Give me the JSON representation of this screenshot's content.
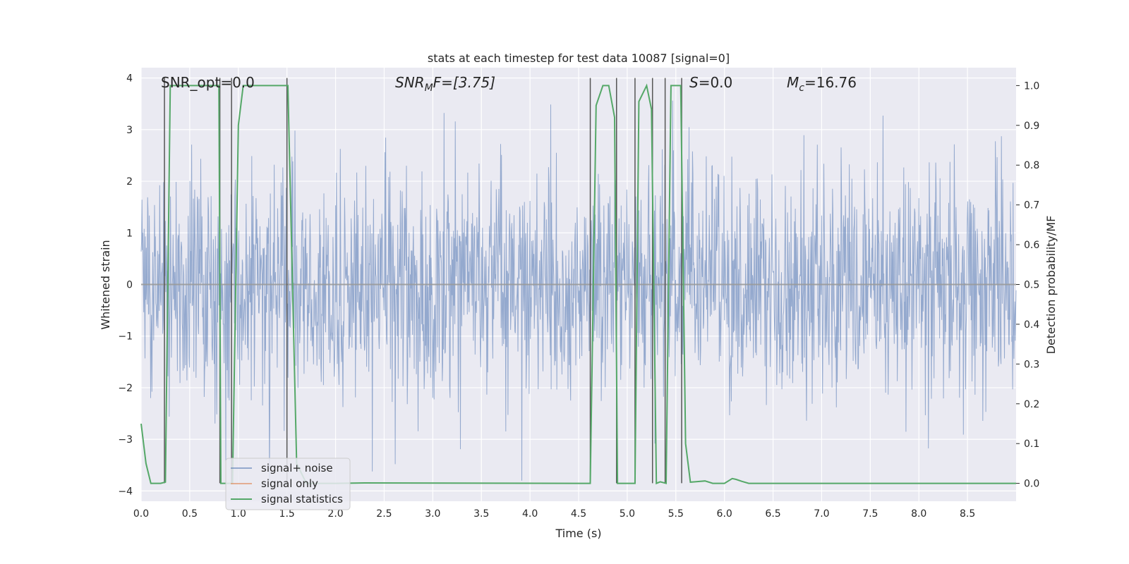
{
  "chart_data": {
    "type": "line",
    "title": "stats at each timestep for test data 10087 [signal=0]",
    "xlabel": "Time (s)",
    "ylabel": "Whitened strain",
    "y2label": "Detection probability/MF",
    "xlim": [
      0,
      9.0
    ],
    "ylim": [
      -4.2,
      4.2
    ],
    "y2lim": [
      -0.045,
      1.045
    ],
    "xticks": [
      0.0,
      0.5,
      1.0,
      1.5,
      2.0,
      2.5,
      3.0,
      3.5,
      4.0,
      4.5,
      5.0,
      5.5,
      6.0,
      6.5,
      7.0,
      7.5,
      8.0,
      8.5
    ],
    "xtick_labels": [
      "0.0",
      "0.5",
      "1.0",
      "1.5",
      "2.0",
      "2.5",
      "3.0",
      "3.5",
      "4.0",
      "4.5",
      "5.0",
      "5.5",
      "6.0",
      "6.5",
      "7.0",
      "7.5",
      "8.0",
      "8.5"
    ],
    "yticks": [
      -4,
      -3,
      -2,
      -1,
      0,
      1,
      2,
      3,
      4
    ],
    "ytick_labels": [
      "−4",
      "−3",
      "−2",
      "−1",
      "0",
      "1",
      "2",
      "3",
      "4"
    ],
    "y2ticks": [
      0.0,
      0.1,
      0.2,
      0.3,
      0.4,
      0.5,
      0.6,
      0.7,
      0.8,
      0.9,
      1.0
    ],
    "y2tick_labels": [
      "0.0",
      "0.1",
      "0.2",
      "0.3",
      "0.4",
      "0.5",
      "0.6",
      "0.7",
      "0.8",
      "0.9",
      "1.0"
    ],
    "annotations": {
      "snr_opt": "SNR_opt=0.0",
      "snr_mf_main": "SNR",
      "snr_mf_sub": "M",
      "snr_mf_rest": "F=[3.75]",
      "s_main": "S",
      "s_rest": "=0.0",
      "mc_main": "M",
      "mc_sub": "c",
      "mc_rest": "=16.76"
    },
    "legend": {
      "position": "lower-left",
      "entries": [
        "signal+ noise",
        "signal only",
        "signal statistics"
      ]
    },
    "series": [
      {
        "name": "signal+ noise",
        "color": "#4c72b0",
        "kind": "noise",
        "sample_rate_hz": 225,
        "duration_s": 9.0,
        "std": 1.0,
        "spike_max": 3.8,
        "spike_min": -3.8
      },
      {
        "name": "signal only",
        "color": "#dd8452",
        "x": [
          0.0,
          9.0
        ],
        "y": [
          0.0,
          0.0
        ]
      },
      {
        "name": "signal statistics",
        "color": "#55a868",
        "x": [
          0.0,
          0.05,
          0.1,
          0.2,
          0.25,
          0.3,
          0.32,
          0.8,
          0.82,
          0.92,
          0.94,
          1.0,
          1.05,
          1.1,
          1.5,
          1.51,
          1.6,
          1.7,
          2.0,
          2.3,
          4.5,
          4.62,
          4.68,
          4.75,
          4.81,
          4.87,
          4.9,
          4.95,
          5.05,
          5.08,
          5.12,
          5.2,
          5.25,
          5.3,
          5.34,
          5.4,
          5.45,
          5.5,
          5.55,
          5.6,
          5.65,
          5.7,
          5.8,
          5.88,
          6.0,
          6.08,
          6.12,
          6.18,
          6.25,
          9.0
        ],
        "y": [
          0.15,
          0.05,
          0.0,
          0.0,
          0.003,
          1.0,
          1.0,
          1.0,
          0.0,
          0.0,
          0.0,
          0.9,
          1.0,
          1.0,
          1.0,
          1.0,
          0.05,
          0.0,
          0.0,
          0.001,
          0.0,
          0.0,
          0.95,
          1.0,
          1.0,
          0.92,
          0.0,
          0.0,
          0.0,
          0.0,
          0.96,
          1.0,
          0.94,
          0.0,
          0.004,
          0.0,
          1.0,
          1.0,
          1.0,
          0.1,
          0.003,
          0.004,
          0.006,
          0.0,
          0.0,
          0.012,
          0.01,
          0.005,
          0.0,
          0.0
        ]
      }
    ],
    "vertical_markers": {
      "color": "#555555",
      "x": [
        0.24,
        0.81,
        0.93,
        1.5,
        4.62,
        4.89,
        5.08,
        5.26,
        5.39,
        5.56
      ],
      "y_top": 4.0,
      "y_bottom": -3.85
    }
  }
}
